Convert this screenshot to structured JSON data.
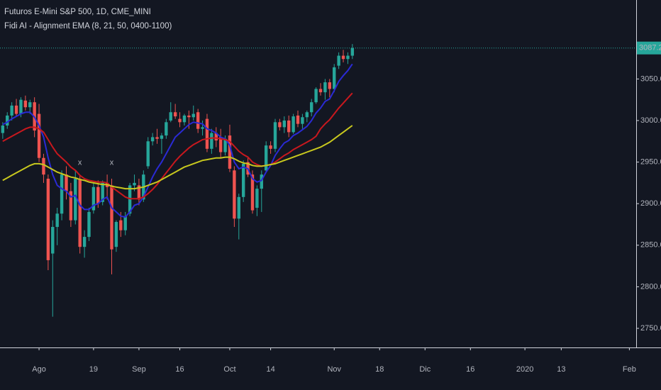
{
  "chart_data": {
    "type": "candlestick",
    "title": "Futuros E-Mini S&P 500, 1D, CME_MINI",
    "indicator": "Fidi AI - Alignment EMA (8, 21, 50, 0400-1100)",
    "up_color": "#26a69a",
    "down_color": "#ef5350",
    "x": [
      0,
      1,
      2,
      3,
      4,
      5,
      6,
      7,
      8,
      9,
      10,
      11,
      12,
      13,
      14,
      15,
      16,
      17,
      18,
      19,
      20,
      21,
      22,
      23,
      24,
      25,
      26,
      27,
      28,
      29,
      30,
      31,
      32,
      33,
      34,
      35,
      36,
      37,
      38,
      39,
      40,
      41,
      42,
      43,
      44,
      45,
      46,
      47,
      48,
      49,
      50,
      51,
      52,
      53,
      54,
      55,
      56,
      57,
      58,
      59,
      60,
      61,
      62,
      63,
      64,
      65,
      66,
      67,
      68,
      69,
      70,
      71,
      72,
      73,
      74,
      75,
      76,
      77
    ],
    "open": [
      2985,
      2994,
      3006,
      3018,
      3008,
      3024,
      3016,
      3022,
      3008,
      2955,
      2930,
      2840,
      2872,
      2888,
      2935,
      2915,
      2880,
      2930,
      2848,
      2860,
      2892,
      2920,
      2902,
      2925,
      2922,
      2848,
      2880,
      2868,
      2888,
      2922,
      2922,
      2905,
      2945,
      2975,
      2980,
      2978,
      2982,
      3000,
      3010,
      3002,
      2998,
      3006,
      3004,
      3010,
      2990,
      3002,
      2966,
      2985,
      2980,
      2962,
      2982,
      2940,
      2882,
      2908,
      2950,
      2935,
      2895,
      2918,
      2940,
      2970,
      2966,
      2998,
      2992,
      3000,
      2986,
      3006,
      2996,
      3004,
      3010,
      3022,
      3038,
      3034,
      3046,
      3038,
      3066,
      3078,
      3074,
      3078
    ],
    "high": [
      2998,
      3010,
      3022,
      3026,
      3028,
      3030,
      3025,
      3028,
      3020,
      2960,
      2935,
      2880,
      2895,
      2940,
      2945,
      2925,
      2940,
      2935,
      2868,
      2895,
      2925,
      2928,
      2928,
      2935,
      2930,
      2880,
      2890,
      2890,
      2925,
      2935,
      2930,
      2940,
      2980,
      2985,
      2990,
      2985,
      3002,
      3022,
      3020,
      3010,
      3008,
      3012,
      3018,
      3014,
      3000,
      3008,
      2990,
      2992,
      2990,
      2982,
      2995,
      2945,
      2912,
      2952,
      2955,
      2940,
      2922,
      2940,
      2975,
      2975,
      3002,
      3002,
      3005,
      3006,
      3008,
      3012,
      3008,
      3012,
      3026,
      3040,
      3045,
      3050,
      3050,
      3068,
      3082,
      3085,
      3082,
      3092
    ],
    "low": [
      2978,
      2990,
      3000,
      3005,
      3004,
      3012,
      3008,
      2980,
      2950,
      2925,
      2820,
      2764,
      2850,
      2880,
      2905,
      2872,
      2875,
      2840,
      2835,
      2855,
      2888,
      2895,
      2898,
      2905,
      2815,
      2842,
      2860,
      2862,
      2885,
      2915,
      2898,
      2902,
      2942,
      2970,
      2972,
      2960,
      2978,
      2998,
      3002,
      2992,
      2994,
      2990,
      3000,
      2985,
      2982,
      2962,
      2960,
      2968,
      2955,
      2958,
      2938,
      2872,
      2857,
      2902,
      2932,
      2888,
      2885,
      2890,
      2938,
      2960,
      2962,
      2988,
      2985,
      2980,
      2984,
      2992,
      2990,
      2998,
      3005,
      3020,
      3030,
      3025,
      3028,
      3034,
      3062,
      3070,
      3068,
      3074
    ],
    "close": [
      2994,
      3006,
      3018,
      3008,
      3025,
      3016,
      3022,
      2988,
      2955,
      2935,
      2832,
      2872,
      2888,
      2935,
      2915,
      2880,
      2930,
      2848,
      2860,
      2890,
      2920,
      2900,
      2925,
      2920,
      2845,
      2878,
      2868,
      2885,
      2922,
      2925,
      2905,
      2935,
      2975,
      2980,
      2978,
      2982,
      2998,
      3010,
      3005,
      2998,
      3006,
      3004,
      3008,
      2990,
      2992,
      2966,
      2985,
      2976,
      2962,
      2978,
      2942,
      2882,
      2908,
      2948,
      2935,
      2892,
      2918,
      2935,
      2970,
      2966,
      2998,
      2992,
      3000,
      2986,
      3005,
      2996,
      3004,
      3010,
      3022,
      3038,
      3034,
      3046,
      3038,
      3064,
      3078,
      3074,
      3078,
      3087.25
    ],
    "lines": [
      {
        "color": "#2a2ad4",
        "values": [
          2995,
          2998,
          3002,
          3005,
          3008,
          3010,
          3010,
          3004,
          2994,
          2980,
          2955,
          2935,
          2922,
          2918,
          2915,
          2908,
          2910,
          2898,
          2893,
          2893,
          2898,
          2900,
          2905,
          2908,
          2895,
          2890,
          2885,
          2884,
          2890,
          2898,
          2900,
          2908,
          2920,
          2932,
          2942,
          2950,
          2960,
          2970,
          2980,
          2985,
          2990,
          2995,
          2998,
          2997,
          2996,
          2990,
          2988,
          2985,
          2980,
          2978,
          2970,
          2950,
          2942,
          2944,
          2942,
          2930,
          2926,
          2928,
          2938,
          2946,
          2958,
          2966,
          2973,
          2976,
          2982,
          2985,
          2989,
          2993,
          3000,
          3009,
          3015,
          3023,
          3026,
          3036,
          3047,
          3054,
          3060,
          3068
        ]
      },
      {
        "color": "#c8181e",
        "values": [
          2975,
          2978,
          2981,
          2984,
          2987,
          2990,
          2992,
          2992,
          2990,
          2986,
          2977,
          2968,
          2960,
          2955,
          2950,
          2944,
          2940,
          2934,
          2930,
          2928,
          2927,
          2926,
          2926,
          2925,
          2920,
          2916,
          2912,
          2908,
          2906,
          2906,
          2906,
          2908,
          2912,
          2917,
          2923,
          2930,
          2937,
          2944,
          2951,
          2957,
          2962,
          2967,
          2971,
          2974,
          2977,
          2978,
          2979,
          2979,
          2978,
          2977,
          2975,
          2969,
          2963,
          2959,
          2956,
          2950,
          2947,
          2945,
          2946,
          2947,
          2950,
          2954,
          2958,
          2961,
          2965,
          2968,
          2971,
          2974,
          2977,
          2981,
          2990,
          2996,
          3001,
          3008,
          3015,
          3021,
          3027,
          3033
        ]
      },
      {
        "color": "#c8c81e",
        "values": [
          2928,
          2931,
          2934,
          2937,
          2940,
          2943,
          2946,
          2948,
          2948,
          2947,
          2944,
          2941,
          2938,
          2936,
          2934,
          2932,
          2931,
          2929,
          2928,
          2926,
          2925,
          2924,
          2923,
          2923,
          2921,
          2920,
          2919,
          2918,
          2918,
          2918,
          2919,
          2920,
          2922,
          2924,
          2926,
          2929,
          2932,
          2935,
          2938,
          2941,
          2944,
          2946,
          2948,
          2950,
          2952,
          2953,
          2954,
          2955,
          2955,
          2956,
          2956,
          2954,
          2951,
          2949,
          2948,
          2946,
          2945,
          2945,
          2946,
          2947,
          2948,
          2950,
          2952,
          2954,
          2956,
          2958,
          2960,
          2962,
          2964,
          2966,
          2968,
          2971,
          2974,
          2978,
          2982,
          2986,
          2990,
          2994
        ]
      }
    ],
    "signals": [
      {
        "label": "x",
        "x": 17,
        "y": 2949
      },
      {
        "label": "x",
        "x": 24,
        "y": 2949
      }
    ],
    "last_price": 3087.25,
    "xlim": [
      -0.6,
      139.5
    ],
    "xticks": [
      {
        "value": 8,
        "label": "Ago"
      },
      {
        "value": 20,
        "label": "19"
      },
      {
        "value": 30,
        "label": "Sep"
      },
      {
        "value": 39,
        "label": "16"
      },
      {
        "value": 50,
        "label": "Oct"
      },
      {
        "value": 59,
        "label": "14"
      },
      {
        "value": 73,
        "label": "Nov"
      },
      {
        "value": 83,
        "label": "18"
      },
      {
        "value": 93,
        "label": "Dic"
      },
      {
        "value": 103,
        "label": "16"
      },
      {
        "value": 115,
        "label": "2020"
      },
      {
        "value": 123,
        "label": "13"
      },
      {
        "value": 138,
        "label": "Feb"
      }
    ],
    "ylim": [
      2727,
      3145
    ],
    "yticks": [
      {
        "value": 2750,
        "label": "2750.00"
      },
      {
        "value": 2800,
        "label": "2800.00"
      },
      {
        "value": 2850,
        "label": "2850.00"
      },
      {
        "value": 2900,
        "label": "2900.00"
      },
      {
        "value": 2950,
        "label": "2950.00"
      },
      {
        "value": 3000,
        "label": "3000.00"
      },
      {
        "value": 3050,
        "label": "3050.00"
      }
    ]
  }
}
